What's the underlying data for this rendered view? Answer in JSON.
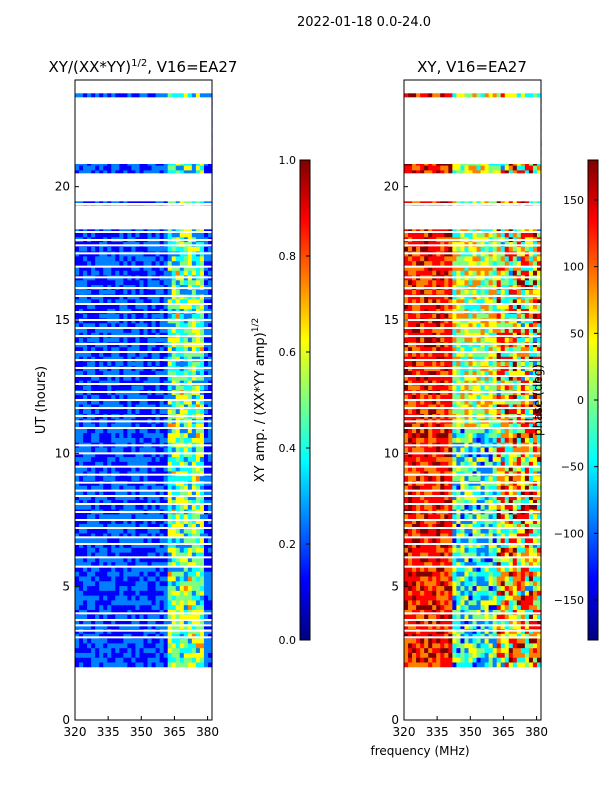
{
  "figure": {
    "suptitle": "2022-01-18 0.0-24.0",
    "xlabel": "frequency (MHz)"
  },
  "chart_data": [
    {
      "type": "heatmap",
      "title": "XY/(XX*YY)",
      "title_superscript": "1/2",
      "title_suffix": ", V16=EA27",
      "xlabel": "",
      "ylabel": "UT (hours)",
      "xlim": [
        320,
        382
      ],
      "ylim": [
        0,
        24
      ],
      "xticks": [
        320,
        335,
        350,
        365,
        380
      ],
      "yticks": [
        0,
        5,
        10,
        15,
        20
      ],
      "data_rows_ut": [
        2.0,
        23.5
      ],
      "empty_bands_ut": [
        [
          20.85,
          23.35
        ],
        [
          19.45,
          20.5
        ],
        [
          18.4,
          19.3
        ]
      ],
      "gap_lines_ut": [
        3.1,
        3.35,
        3.55,
        3.75,
        4.0,
        5.75,
        6.1,
        6.6,
        6.85,
        7.2,
        7.5,
        7.8,
        8.1,
        8.4,
        8.6,
        8.9,
        9.2,
        9.5,
        10.0,
        10.3,
        10.95,
        11.2,
        11.4,
        11.7,
        12.0,
        12.3,
        12.6,
        12.9,
        13.2,
        13.5,
        13.8,
        14.1,
        14.4,
        14.7,
        15.0,
        15.3,
        15.6,
        15.9,
        16.2,
        16.6,
        17.0,
        17.5,
        17.8,
        18.0,
        18.3,
        19.35
      ],
      "bright_band_mhz": [
        362,
        378
      ],
      "colorbar": {
        "label": "XY amp. / (XX*YY amp)",
        "label_superscript": "1/2",
        "range": [
          0.0,
          1.0
        ],
        "ticks": [
          "0.0",
          "0.2",
          "0.4",
          "0.6",
          "0.8",
          "1.0"
        ],
        "tick_values": [
          0.0,
          0.2,
          0.4,
          0.6,
          0.8,
          1.0
        ]
      }
    },
    {
      "type": "heatmap",
      "title": "XY, V16=EA27",
      "xlabel": "frequency (MHz)",
      "ylabel": "",
      "xlim": [
        320,
        382
      ],
      "ylim": [
        0,
        24
      ],
      "xticks": [
        320,
        335,
        350,
        365,
        380
      ],
      "yticks": [
        0,
        5,
        10,
        15,
        20
      ],
      "data_rows_ut": [
        2.0,
        23.5
      ],
      "colorbar": {
        "label": "phase (deg)",
        "range": [
          -180,
          180
        ],
        "ticks": [
          "−150",
          "−100",
          "−50",
          "0",
          "50",
          "100",
          "150"
        ],
        "tick_values": [
          -150,
          -100,
          -50,
          0,
          50,
          100,
          150
        ]
      }
    }
  ],
  "colors": {
    "jet": [
      "#00007f",
      "#0000ff",
      "#007fff",
      "#00ffff",
      "#7fff7f",
      "#ffff00",
      "#ff7f00",
      "#ff0000",
      "#7f0000"
    ],
    "background": "#0000c8",
    "gap": "#ffffff"
  }
}
